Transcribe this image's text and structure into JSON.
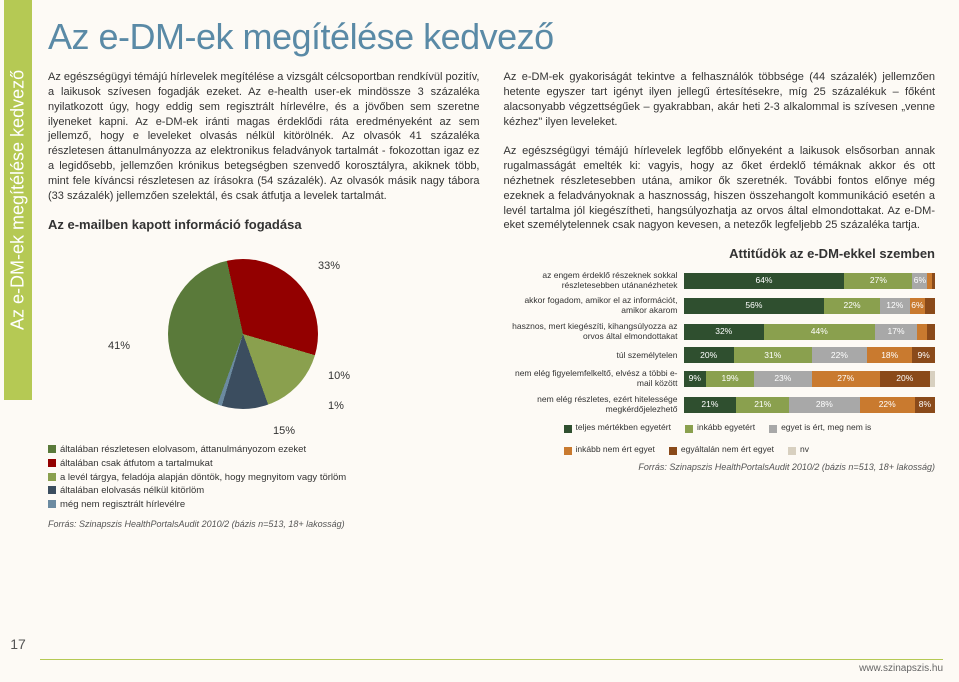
{
  "page": {
    "side_tab": "Az e-DM-ek megítélése kedvező",
    "page_number": "17",
    "footer_url": "www.szinapszis.hu"
  },
  "title": "Az e-DM-ek megítélése kedvező",
  "body": {
    "left": "Az egészségügyi témájú hírlevelek megítélése a vizsgált célcsoportban rendkívül pozitív, a laikusok szívesen fogadják ezeket. Az e-health user-ek mindössze 3 százaléka nyilatkozott úgy, hogy eddig sem regisztrált hírlevélre, és a jövőben sem szeretne ilyeneket kapni. Az e-DM-ek iránti magas érdeklődi ráta eredményeként az sem jellemző, hogy e leveleket olvasás nélkül kitörölnék. Az olvasók 41 százaléka részletesen áttanulmányozza az elektronikus feladványok tartalmát - fokozottan igaz ez a legidősebb, jellemzően krónikus betegségben szenvedő korosztályra, akiknek több, mint fele kíváncsi részletesen az írásokra (54 százalék). Az olvasók másik nagy tábora (33 százalék) jellemzően szelektál, és csak átfutja a levelek tartalmát.",
    "right": "Az e-DM-ek gyakoriságát tekintve a felhasználók többsége (44 százalék) jellemzően hetente egyszer tart igényt ilyen jellegű értesítésekre, míg 25 százalékuk – főként alacsonyabb végzettségűek – gyakrabban, akár heti 2-3 alkalommal is szívesen „venne kézhez\" ilyen leveleket.\n\nAz egészségügyi témájú hírlevelek legfőbb előnyeként a laikusok elsősorban annak rugalmasságát emelték ki: vagyis, hogy az őket érdeklő témáknak akkor és ott nézhetnek részletesebben utána, amikor ők szeretnék. További fontos előnye még ezeknek a feladványoknak a hasznosság, hiszen összehangolt kommunikáció esetén a levél tartalma jól kiegészítheti, hangsúlyozhatja az orvos által elmondottakat. Az e-DM-eket személytelennek csak nagyon kevesen, a netezők legfeljebb 25 százaléka tartja."
  },
  "pie_chart": {
    "type": "pie",
    "title": "Az e-mailben kapott információ fogadása",
    "background_color": "#fdfaf5",
    "slices": [
      {
        "label": "általában részletesen elolvasom, áttanulmányozom ezeket",
        "value": 41,
        "color": "#5a7a3a",
        "label_display": "41%"
      },
      {
        "label": "általában csak átfutom a tartalmukat",
        "value": 33,
        "color": "#930000",
        "label_display": "33%"
      },
      {
        "label": "a levél tárgya, feladója alapján döntök, hogy megnyitom vagy törlöm",
        "value": 15,
        "color": "#8aa04e",
        "label_display": "15%"
      },
      {
        "label": "általában elolvasás nélkül kitörlöm",
        "value": 10,
        "color": "#3b4d5f",
        "label_display": "10%"
      },
      {
        "label": "még nem regisztrált hírlevélre",
        "value": 1,
        "color": "#6b8aa0",
        "label_display": "1%"
      }
    ],
    "label_fontsize": 11,
    "legend_fontsize": 9.5,
    "source": "Forrás: Szinapszis HealthPortalsAudit 2010/2 (bázis n=513, 18+ lakosság)"
  },
  "bar_chart": {
    "type": "stacked_bar_horizontal",
    "title": "Attitűdök az e-DM-ekkel szemben",
    "title_fontsize": 13,
    "label_fontsize": 8.5,
    "xlim": [
      0,
      100
    ],
    "rows": [
      {
        "label": "az engem érdeklő részeknek sokkal részletesebben utánanézhetek",
        "segments": [
          64,
          27,
          6,
          2,
          1
        ]
      },
      {
        "label": "akkor fogadom, amikor el az információt, amikor akarom",
        "segments": [
          56,
          22,
          12,
          6,
          4
        ]
      },
      {
        "label": "hasznos, mert kiegészíti, kihangsúlyozza az orvos által elmondottakat",
        "segments": [
          32,
          44,
          17,
          4,
          3
        ]
      },
      {
        "label": "túl személytelen",
        "segments": [
          20,
          31,
          22,
          18,
          9
        ]
      },
      {
        "label": "nem elég figyelemfelkeltő, elvész a többi e-mail között",
        "segments": [
          9,
          19,
          23,
          27,
          20,
          2
        ]
      },
      {
        "label": "nem elég részletes, ezért hitelessége megkérdőjelezhető",
        "segments": [
          21,
          21,
          28,
          22,
          8
        ]
      }
    ],
    "segment_colors": [
      "#2f4f2f",
      "#8aa04e",
      "#a8a8a8",
      "#c97a2f",
      "#8a4a1a",
      "#d8d0c0"
    ],
    "legend": [
      {
        "label": "teljes mértékben egyetért",
        "color": "#2f4f2f"
      },
      {
        "label": "inkább egyetért",
        "color": "#8aa04e"
      },
      {
        "label": "egyet is ért, meg nem is",
        "color": "#a8a8a8"
      },
      {
        "label": "inkább nem ért egyet",
        "color": "#c97a2f"
      },
      {
        "label": "egyáltalán nem ért egyet",
        "color": "#8a4a1a"
      },
      {
        "label": "nv",
        "color": "#d8d0c0"
      }
    ],
    "source": "Forrás: Szinapszis HealthPortalsAudit 2010/2 (bázis n=513, 18+ lakosság)"
  }
}
